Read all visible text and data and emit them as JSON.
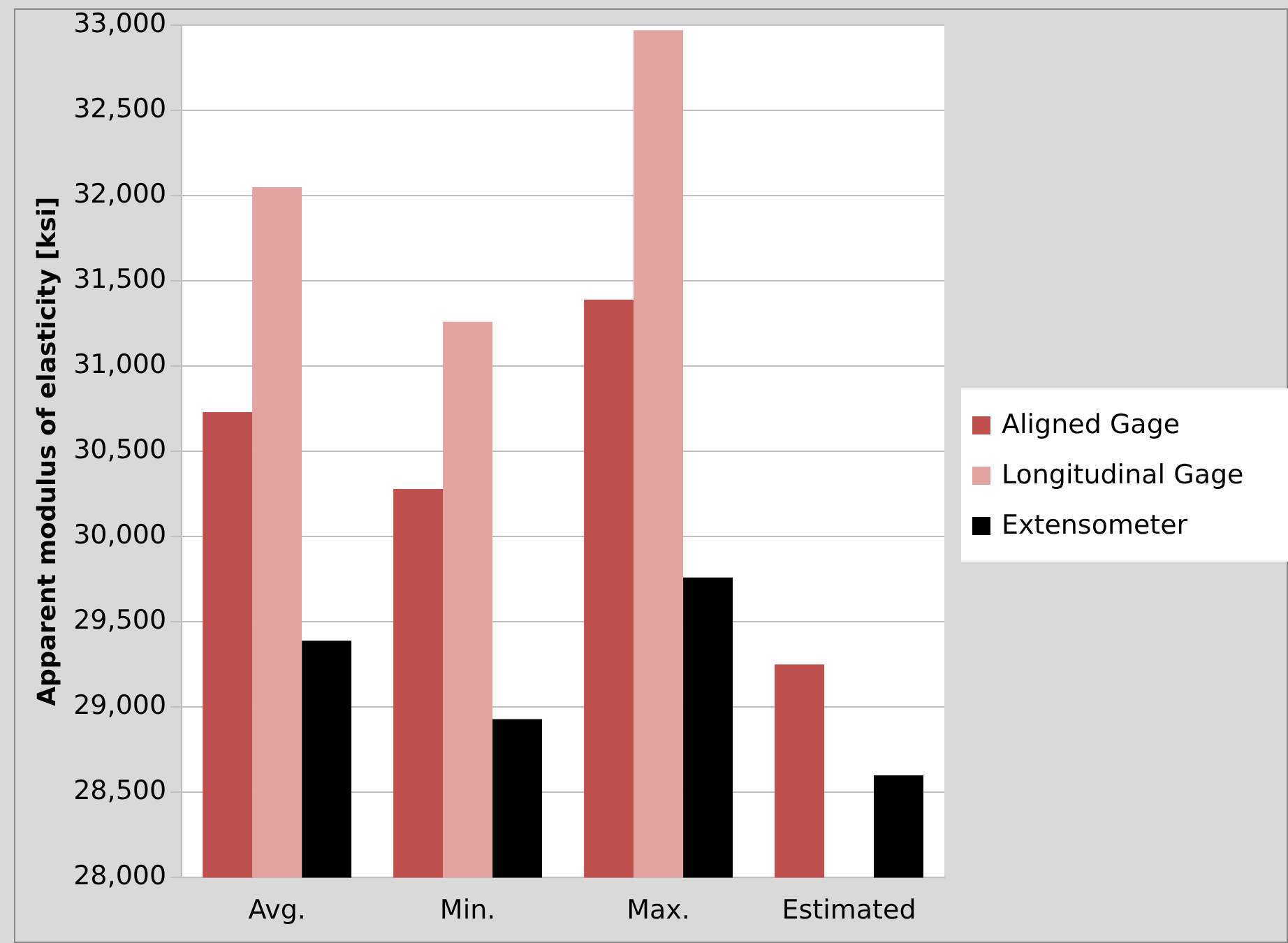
{
  "chart_data": {
    "type": "bar",
    "ylabel": "Apparent modulus of elasticity [ksi]",
    "categories": [
      "Avg.",
      "Min.",
      "Max.",
      "Estimated"
    ],
    "series": [
      {
        "name": "Aligned Gage",
        "color": "#c0504d",
        "values": [
          30730,
          30280,
          31390,
          29250
        ]
      },
      {
        "name": "Longitudinal Gage",
        "color": "#e3a3a1",
        "values": [
          32050,
          31260,
          32970,
          null
        ]
      },
      {
        "name": "Extensometer",
        "color": "#000000",
        "values": [
          29390,
          28930,
          29760,
          28600
        ]
      }
    ],
    "ylim": [
      28000,
      33000
    ],
    "yticks": [
      {
        "value": 28000,
        "label": "28,000"
      },
      {
        "value": 28500,
        "label": "28,500"
      },
      {
        "value": 29000,
        "label": "29,000"
      },
      {
        "value": 29500,
        "label": "29,500"
      },
      {
        "value": 30000,
        "label": "30,000"
      },
      {
        "value": 30500,
        "label": "30,500"
      },
      {
        "value": 31000,
        "label": "31,000"
      },
      {
        "value": 31500,
        "label": "31,500"
      },
      {
        "value": 32000,
        "label": "32,000"
      },
      {
        "value": 32500,
        "label": "32,500"
      },
      {
        "value": 33000,
        "label": "33,000"
      }
    ],
    "grid": "y",
    "legend": "right"
  }
}
